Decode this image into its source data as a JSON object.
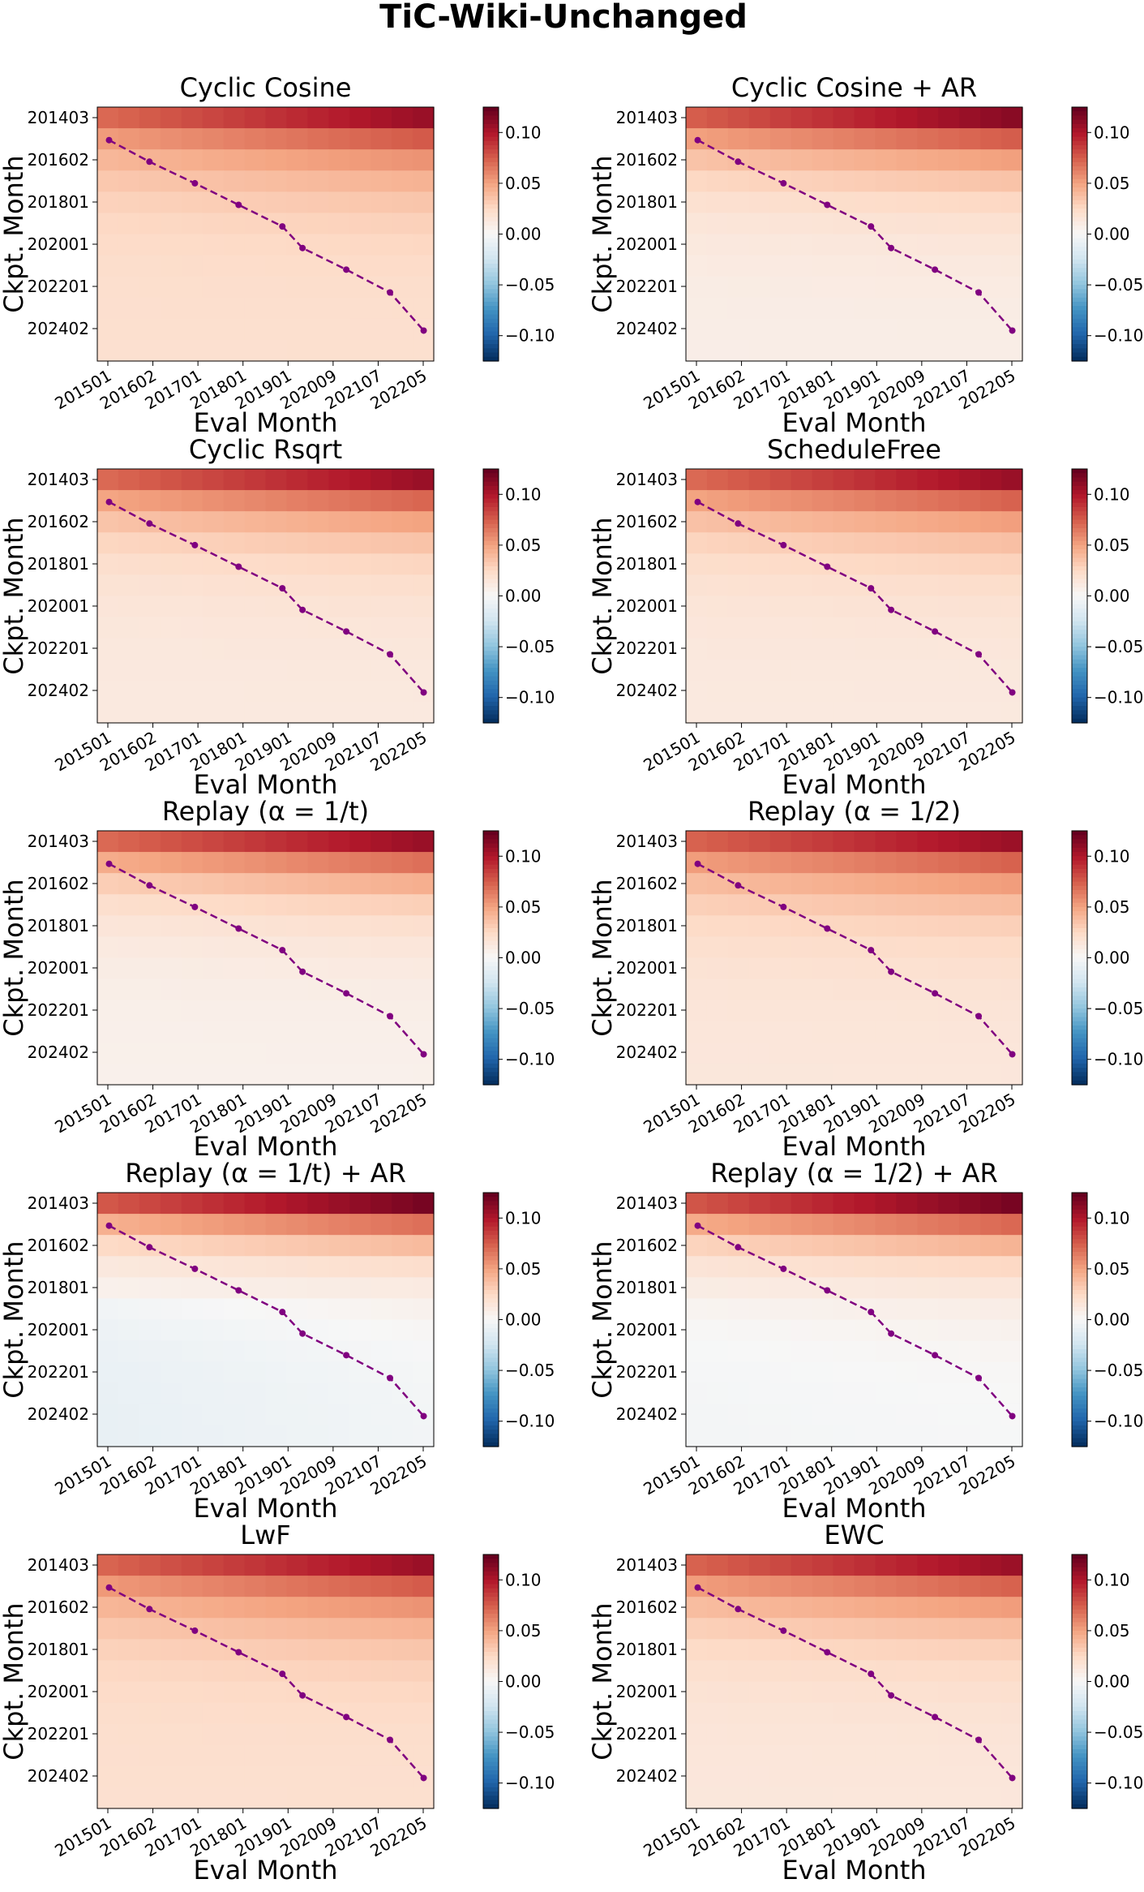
{
  "figure": {
    "title": "TiC-Wiki-Unchanged"
  },
  "colors": {
    "diagonal_line": "#800080",
    "axis": "#000000",
    "colormap": "RdBu_r"
  },
  "chart_data": [
    {
      "type": "heatmap",
      "title": "Cyclic Cosine",
      "xlabel": "Eval Month",
      "ylabel": "Ckpt. Month",
      "x_tick_labels": [
        "201501",
        "201602",
        "201701",
        "201801",
        "201901",
        "202009",
        "202107",
        "202205"
      ],
      "y_tick_labels": [
        "201403",
        "201602",
        "201801",
        "202001",
        "202201",
        "202402"
      ],
      "colorbar_ticks": [
        "0.10",
        "0.05",
        "0.00",
        "−0.05",
        "−0.10"
      ],
      "vlim": [
        -0.125,
        0.125
      ],
      "top": 0.1,
      "decay": 2.2,
      "floor": 0.02,
      "colgain": 0.35,
      "dip": 0.0
    },
    {
      "type": "heatmap",
      "title": "Cyclic Cosine + AR",
      "xlabel": "Eval Month",
      "ylabel": "Ckpt. Month",
      "x_tick_labels": [
        "201501",
        "201602",
        "201701",
        "201801",
        "201901",
        "202009",
        "202107",
        "202205"
      ],
      "y_tick_labels": [
        "201403",
        "201602",
        "201801",
        "202001",
        "202201",
        "202402"
      ],
      "colorbar_ticks": [
        "0.10",
        "0.05",
        "0.00",
        "−0.05",
        "−0.10"
      ],
      "vlim": [
        -0.125,
        0.125
      ],
      "top": 0.105,
      "decay": 2.2,
      "floor": 0.008,
      "colgain": 0.3,
      "dip": 0.0
    },
    {
      "type": "heatmap",
      "title": "Cyclic Rsqrt",
      "xlabel": "Eval Month",
      "ylabel": "Ckpt. Month",
      "x_tick_labels": [
        "201501",
        "201602",
        "201701",
        "201801",
        "201901",
        "202009",
        "202107",
        "202205"
      ],
      "y_tick_labels": [
        "201403",
        "201602",
        "201801",
        "202001",
        "202201",
        "202402"
      ],
      "colorbar_ticks": [
        "0.10",
        "0.05",
        "0.00",
        "−0.05",
        "−0.10"
      ],
      "vlim": [
        -0.125,
        0.125
      ],
      "top": 0.1,
      "decay": 2.3,
      "floor": 0.012,
      "colgain": 0.32,
      "dip": 0.0
    },
    {
      "type": "heatmap",
      "title": "ScheduleFree",
      "xlabel": "Eval Month",
      "ylabel": "Ckpt. Month",
      "x_tick_labels": [
        "201501",
        "201602",
        "201701",
        "201801",
        "201901",
        "202009",
        "202107",
        "202205"
      ],
      "y_tick_labels": [
        "201403",
        "201602",
        "201801",
        "202001",
        "202201",
        "202402"
      ],
      "colorbar_ticks": [
        "0.10",
        "0.05",
        "0.00",
        "−0.05",
        "−0.10"
      ],
      "vlim": [
        -0.125,
        0.125
      ],
      "top": 0.1,
      "decay": 2.2,
      "floor": 0.012,
      "colgain": 0.32,
      "dip": 0.0
    },
    {
      "type": "heatmap",
      "title": "Replay (α = 1/t)",
      "xlabel": "Eval Month",
      "ylabel": "Ckpt. Month",
      "x_tick_labels": [
        "201501",
        "201602",
        "201701",
        "201801",
        "201901",
        "202009",
        "202107",
        "202205"
      ],
      "y_tick_labels": [
        "201403",
        "201602",
        "201801",
        "202001",
        "202201",
        "202402"
      ],
      "colorbar_ticks": [
        "0.10",
        "0.05",
        "0.00",
        "−0.05",
        "−0.10"
      ],
      "vlim": [
        -0.125,
        0.125
      ],
      "top": 0.1,
      "decay": 2.4,
      "floor": 0.006,
      "colgain": 0.3,
      "dip": 0.0
    },
    {
      "type": "heatmap",
      "title": "Replay (α = 1/2)",
      "xlabel": "Eval Month",
      "ylabel": "Ckpt. Month",
      "x_tick_labels": [
        "201501",
        "201602",
        "201701",
        "201801",
        "201901",
        "202009",
        "202107",
        "202205"
      ],
      "y_tick_labels": [
        "201403",
        "201602",
        "201801",
        "202001",
        "202201",
        "202402"
      ],
      "colorbar_ticks": [
        "0.10",
        "0.05",
        "0.00",
        "−0.05",
        "−0.10"
      ],
      "vlim": [
        -0.125,
        0.125
      ],
      "top": 0.1,
      "decay": 2.2,
      "floor": 0.014,
      "colgain": 0.3,
      "dip": 0.0
    },
    {
      "type": "heatmap",
      "title": "Replay (α = 1/t) + AR",
      "xlabel": "Eval Month",
      "ylabel": "Ckpt. Month",
      "x_tick_labels": [
        "201501",
        "201602",
        "201701",
        "201801",
        "201901",
        "202009",
        "202107",
        "202205"
      ],
      "y_tick_labels": [
        "201403",
        "201602",
        "201801",
        "202001",
        "202201",
        "202402"
      ],
      "colorbar_ticks": [
        "0.10",
        "0.05",
        "0.00",
        "−0.05",
        "−0.10"
      ],
      "vlim": [
        -0.125,
        0.125
      ],
      "top": 0.11,
      "decay": 2.6,
      "floor": -0.004,
      "colgain": 0.28,
      "dip": -0.006
    },
    {
      "type": "heatmap",
      "title": "Replay (α = 1/2) + AR",
      "xlabel": "Eval Month",
      "ylabel": "Ckpt. Month",
      "x_tick_labels": [
        "201501",
        "201602",
        "201701",
        "201801",
        "201901",
        "202009",
        "202107",
        "202205"
      ],
      "y_tick_labels": [
        "201403",
        "201602",
        "201801",
        "202001",
        "202201",
        "202402"
      ],
      "colorbar_ticks": [
        "0.10",
        "0.05",
        "0.00",
        "−0.05",
        "−0.10"
      ],
      "vlim": [
        -0.125,
        0.125
      ],
      "top": 0.11,
      "decay": 2.5,
      "floor": -0.001,
      "colgain": 0.28,
      "dip": -0.002
    },
    {
      "type": "heatmap",
      "title": "LwF",
      "xlabel": "Eval Month",
      "ylabel": "Ckpt. Month",
      "x_tick_labels": [
        "201501",
        "201602",
        "201701",
        "201801",
        "201901",
        "202009",
        "202107",
        "202205"
      ],
      "y_tick_labels": [
        "201403",
        "201602",
        "201801",
        "202001",
        "202201",
        "202402"
      ],
      "colorbar_ticks": [
        "0.10",
        "0.05",
        "0.00",
        "−0.05",
        "−0.10"
      ],
      "vlim": [
        -0.125,
        0.125
      ],
      "top": 0.1,
      "decay": 2.2,
      "floor": 0.02,
      "colgain": 0.33,
      "dip": 0.0
    },
    {
      "type": "heatmap",
      "title": "EWC",
      "xlabel": "Eval Month",
      "ylabel": "Ckpt. Month",
      "x_tick_labels": [
        "201501",
        "201602",
        "201701",
        "201801",
        "201901",
        "202009",
        "202107",
        "202205"
      ],
      "y_tick_labels": [
        "201403",
        "201602",
        "201801",
        "202001",
        "202201",
        "202402"
      ],
      "colorbar_ticks": [
        "0.10",
        "0.05",
        "0.00",
        "−0.05",
        "−0.10"
      ],
      "vlim": [
        -0.125,
        0.125
      ],
      "top": 0.1,
      "decay": 2.2,
      "floor": 0.014,
      "colgain": 0.3,
      "dip": 0.0
    }
  ]
}
